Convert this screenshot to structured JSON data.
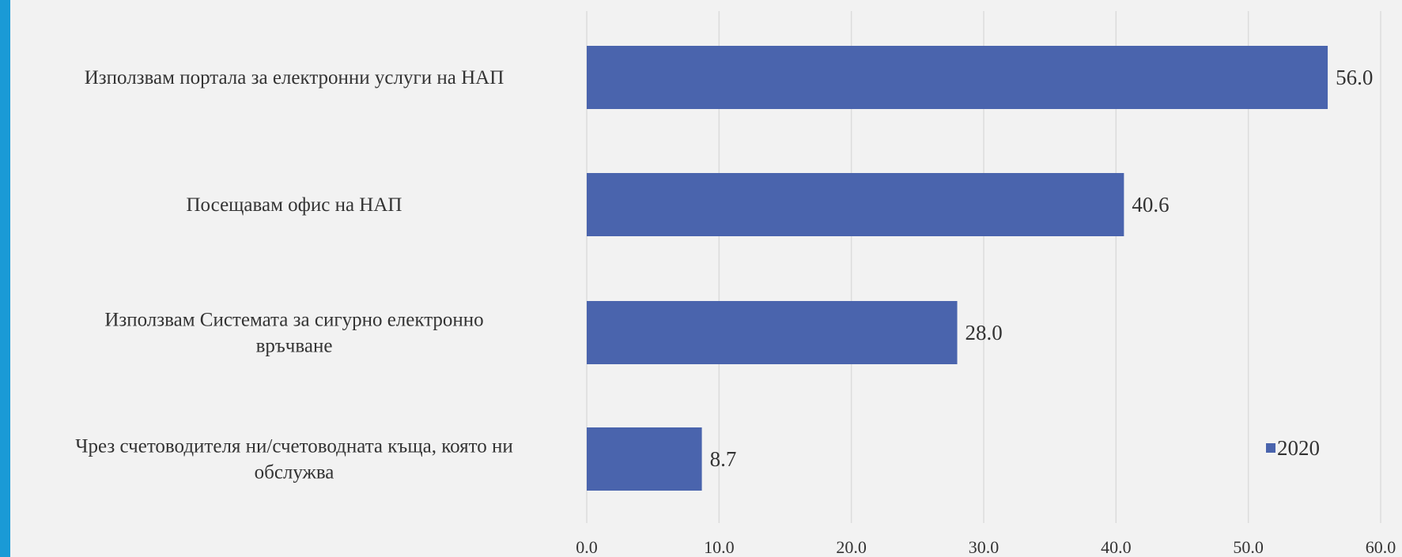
{
  "chart_data": {
    "type": "bar",
    "orientation": "horizontal",
    "categories": [
      [
        "Използвам портала за електронни услуги на НАП"
      ],
      [
        "Посещавам офис на НАП"
      ],
      [
        "Използвам Системата за сигурно електронно",
        "връчване"
      ],
      [
        "Чрез счетоводителя ни/счетоводната къща, която ни",
        "обслужва"
      ]
    ],
    "series": [
      {
        "name": "2020",
        "values": [
          56.0,
          40.6,
          28.0,
          8.7
        ],
        "value_labels": [
          "56.0",
          "40.6",
          "28.0",
          "8.7"
        ]
      }
    ],
    "xlim": [
      0,
      60
    ],
    "xticks": [
      0,
      10,
      20,
      30,
      40,
      50,
      60
    ],
    "xtick_labels": [
      "0.0",
      "10.0",
      "20.0",
      "30.0",
      "40.0",
      "50.0",
      "60.0"
    ],
    "grid": true,
    "legend_position": "right",
    "colors": {
      "bar": "#4a64ad",
      "accent_stripe": "#1a9ad6"
    }
  }
}
